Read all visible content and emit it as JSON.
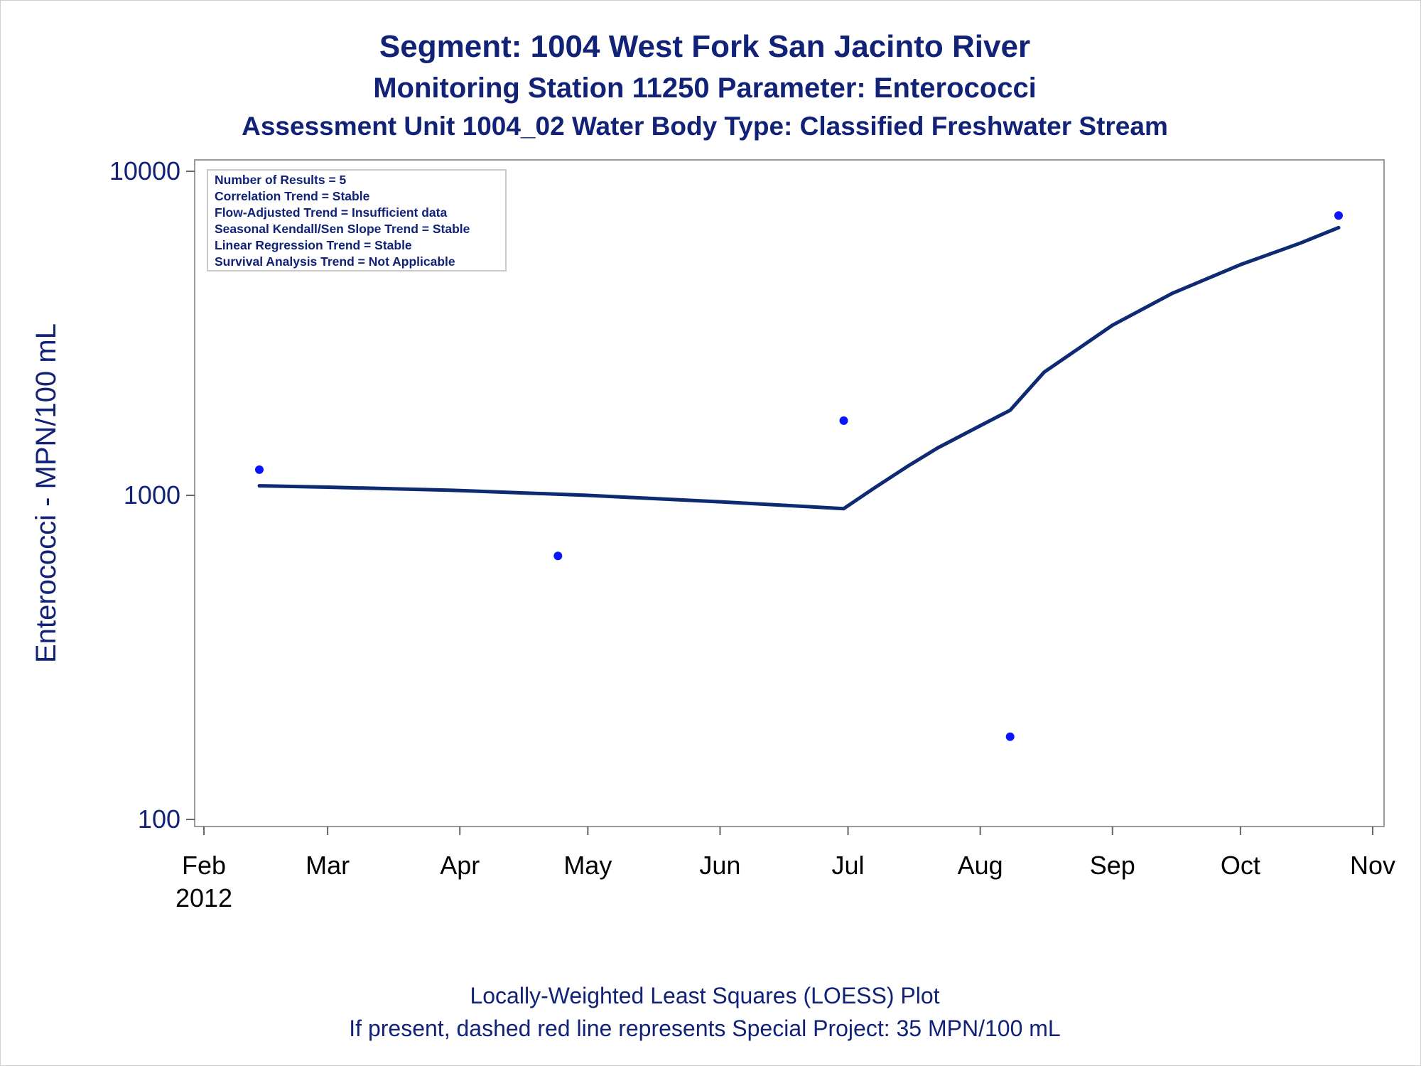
{
  "titles": {
    "line1": "Segment: 1004  West Fork San Jacinto River",
    "line2": "Monitoring Station 11250 Parameter: Enterococci",
    "line3": "Assessment Unit 1004_02   Water Body Type: Classified Freshwater Stream"
  },
  "stats_box": {
    "lines": [
      "Number of Results = 5",
      "Correlation Trend = Stable",
      "Flow-Adjusted Trend = Insufficient data",
      "Seasonal Kendall/Sen Slope Trend = Stable",
      "Linear Regression Trend = Stable",
      "Survival Analysis Trend = Not Applicable"
    ]
  },
  "footnotes": {
    "line1": "Locally-Weighted Least Squares (LOESS) Plot",
    "line2": "If present, dashed red line represents Special Project: 35 MPN/100 mL"
  },
  "colors": {
    "text": "#112277",
    "line": "#0d2a72",
    "points": "#0a14ff",
    "frame": "#9a9a9a"
  },
  "chart_data": {
    "type": "scatter",
    "title": "Segment: 1004  West Fork San Jacinto River",
    "xlabel": "",
    "ylabel": "Enterococci - MPN/100 mL",
    "y_scale": "log",
    "ylim": [
      100,
      10000
    ],
    "y_ticks": [
      {
        "value": 100,
        "label": "100"
      },
      {
        "value": 1000,
        "label": "1000"
      },
      {
        "value": 10000,
        "label": "10000"
      }
    ],
    "xlim": [
      "2012-02-01",
      "2012-11-01"
    ],
    "x_ticks": [
      {
        "date": "2012-02-01",
        "label": "Feb",
        "sublabel": "2012"
      },
      {
        "date": "2012-03-01",
        "label": "Mar"
      },
      {
        "date": "2012-04-01",
        "label": "Apr"
      },
      {
        "date": "2012-05-01",
        "label": "May"
      },
      {
        "date": "2012-06-01",
        "label": "Jun"
      },
      {
        "date": "2012-07-01",
        "label": "Jul"
      },
      {
        "date": "2012-08-01",
        "label": "Aug"
      },
      {
        "date": "2012-09-01",
        "label": "Sep"
      },
      {
        "date": "2012-10-01",
        "label": "Oct"
      },
      {
        "date": "2012-11-01",
        "label": "Nov"
      }
    ],
    "points": [
      {
        "x": "2012-02-14",
        "y": 1200
      },
      {
        "x": "2012-04-24",
        "y": 650
      },
      {
        "x": "2012-06-30",
        "y": 1700
      },
      {
        "x": "2012-08-08",
        "y": 180
      },
      {
        "x": "2012-10-24",
        "y": 7300
      }
    ],
    "loess": [
      {
        "x": "2012-02-14",
        "y": 1070
      },
      {
        "x": "2012-03-01",
        "y": 1060
      },
      {
        "x": "2012-04-01",
        "y": 1035
      },
      {
        "x": "2012-05-01",
        "y": 1000
      },
      {
        "x": "2012-06-01",
        "y": 955
      },
      {
        "x": "2012-06-30",
        "y": 910
      },
      {
        "x": "2012-07-07",
        "y": 1050
      },
      {
        "x": "2012-07-15",
        "y": 1230
      },
      {
        "x": "2012-07-22",
        "y": 1400
      },
      {
        "x": "2012-08-01",
        "y": 1640
      },
      {
        "x": "2012-08-08",
        "y": 1830
      },
      {
        "x": "2012-08-16",
        "y": 2400
      },
      {
        "x": "2012-09-01",
        "y": 3350
      },
      {
        "x": "2012-09-15",
        "y": 4200
      },
      {
        "x": "2012-10-01",
        "y": 5150
      },
      {
        "x": "2012-10-15",
        "y": 6000
      },
      {
        "x": "2012-10-24",
        "y": 6700
      }
    ],
    "grid": false,
    "legend": "top-left"
  }
}
